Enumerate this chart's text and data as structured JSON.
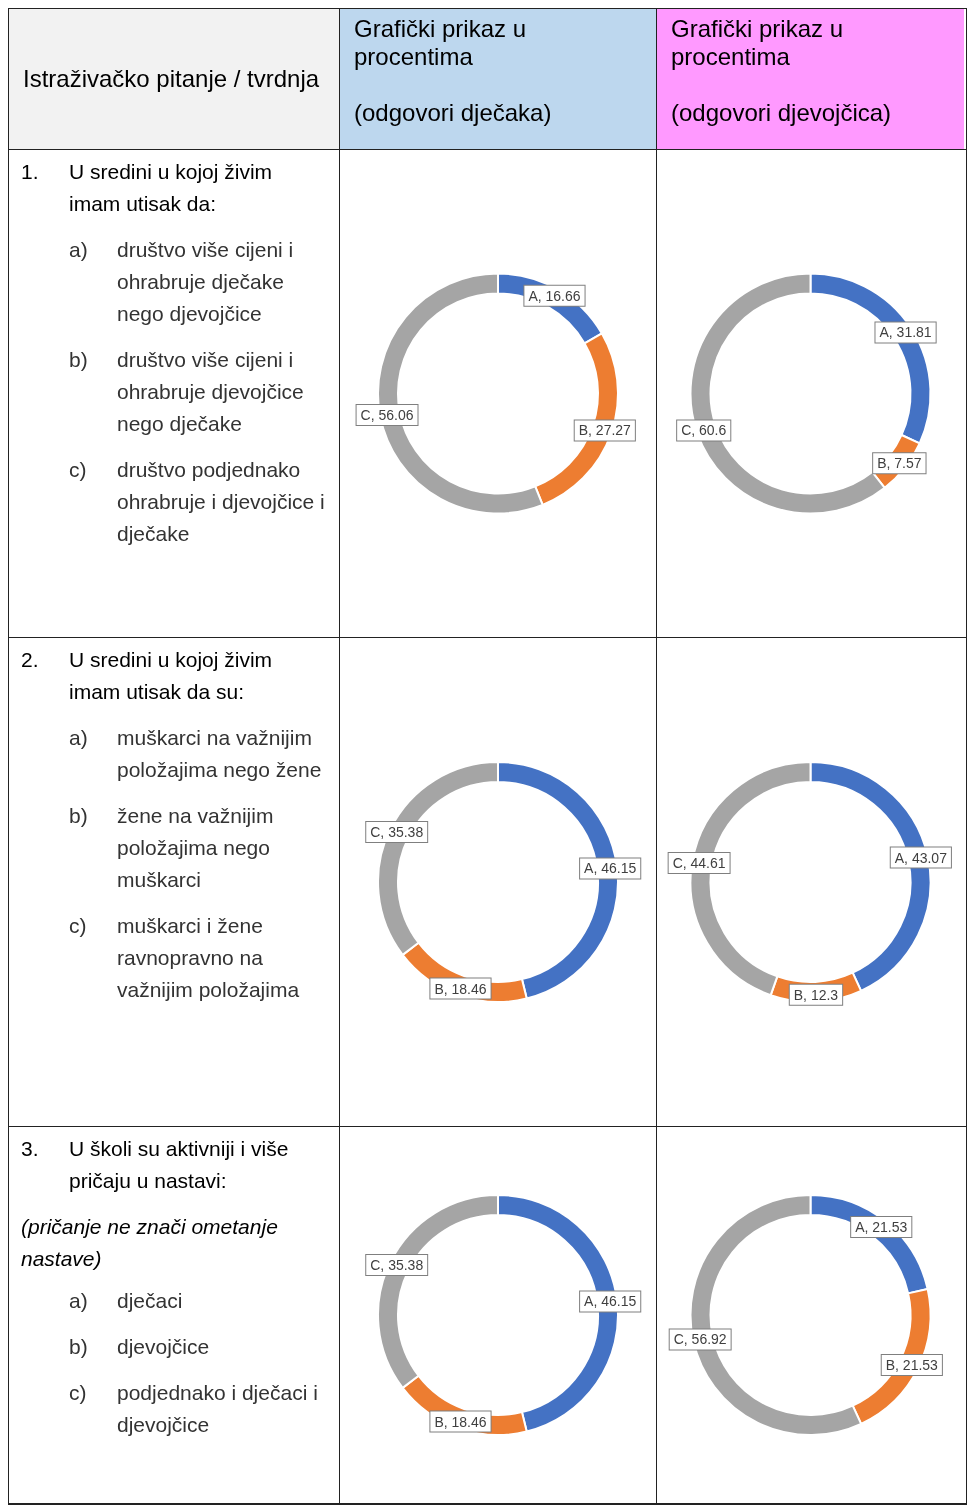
{
  "chart_data": [
    {
      "type": "other",
      "annotations": [
        "Istraživačko pitanje / tvrdnja",
        "Grafički prikaz u procentima\n\n(odgovori dječaka)",
        "Grafički prikaz u procentima\n\n(odgovori djevojčica)"
      ]
    },
    {
      "type": "other",
      "title": "1. U sredini u kojoj živim imam utisak da:",
      "annotations": [
        "a) društvo više cijeni i ohrabruje dječake nego djevojčice",
        "b) društvo više cijeni i ohrabruje djevojčice nego dječake",
        "c) društvo podjednako ohrabruje i djevojčice i dječake"
      ]
    },
    {
      "type": "donut",
      "categories": [
        "A",
        "B",
        "C"
      ],
      "values": [
        16.66,
        27.27,
        56.06
      ],
      "value_labels": [
        ", 16.66",
        ", 27.27",
        ", 56.06"
      ],
      "colors": [
        "#4472c4",
        "#ed7d31",
        "#a5a5a5"
      ]
    },
    {
      "type": "donut",
      "categories": [
        "A",
        "B",
        "C"
      ],
      "values": [
        31.81,
        7.57,
        60.6
      ],
      "value_labels": [
        ", 31.81",
        ", 7.57",
        ", 60.6"
      ],
      "colors": [
        "#4472c4",
        "#ed7d31",
        "#a5a5a5"
      ]
    },
    {
      "type": "other",
      "title": "2. U sredini u kojoj živim imam utisak da su:",
      "annotations": [
        "a) muškarci na važnijim položajima nego žene",
        "b) žene na važnijim položajima nego muškarci",
        "c) muškarci i žene ravnopravno na važnijim položajima"
      ]
    },
    {
      "type": "donut",
      "categories": [
        "A",
        "B",
        "C"
      ],
      "values": [
        46.15,
        18.46,
        35.38
      ],
      "value_labels": [
        ", 46.15",
        ", 18.46",
        ", 35.38"
      ],
      "colors": [
        "#4472c4",
        "#ed7d31",
        "#a5a5a5"
      ]
    },
    {
      "type": "donut",
      "categories": [
        "A",
        "B",
        "C"
      ],
      "values": [
        43.07,
        12.3,
        44.61
      ],
      "value_labels": [
        ", 43.07",
        ", 12.3",
        ", 44.61"
      ],
      "colors": [
        "#4472c4",
        "#ed7d31",
        "#a5a5a5"
      ]
    },
    {
      "type": "other",
      "title": "3. U školi su aktivniji i više pričaju u nastavi:",
      "subtitle": "(pričanje ne znači ometanje nastave)",
      "annotations": [
        "a) dječaci",
        "b) djevojčice",
        "c) podjednako i dječaci i djevojčice"
      ]
    },
    {
      "type": "donut",
      "categories": [
        "A",
        "B",
        "C"
      ],
      "values": [
        46.15,
        18.46,
        35.38
      ],
      "value_labels": [
        ", 46.15",
        ", 18.46",
        ", 35.38"
      ],
      "colors": [
        "#4472c4",
        "#ed7d31",
        "#a5a5a5"
      ]
    },
    {
      "type": "donut",
      "categories": [
        "A",
        "B",
        "C"
      ],
      "values": [
        21.53,
        21.53,
        56.92
      ],
      "value_labels": [
        ", 21.53",
        ", 21.53",
        ", 56.92"
      ],
      "colors": [
        "#4472c4",
        "#ed7d31",
        "#a5a5a5"
      ]
    }
  ]
}
